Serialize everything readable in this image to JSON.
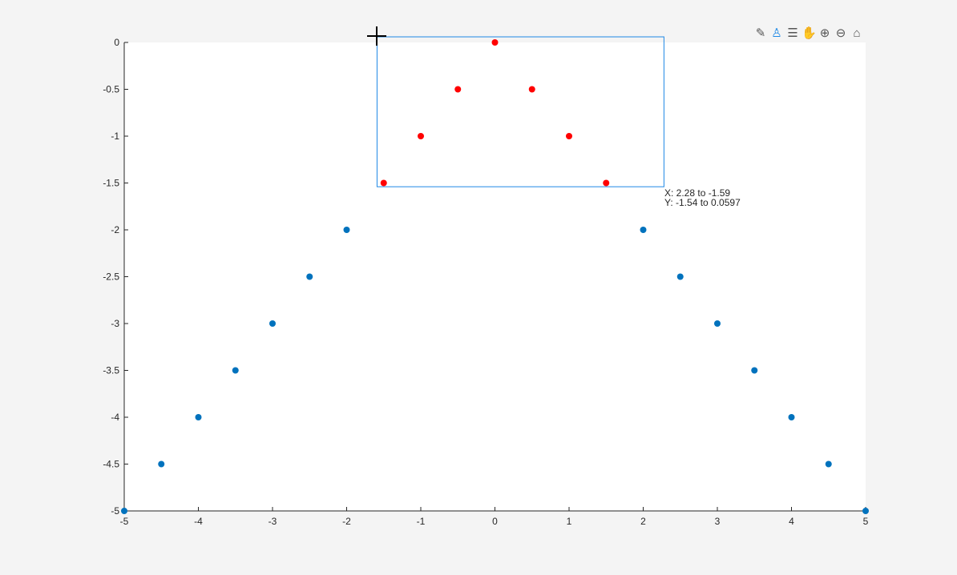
{
  "toolbar": {
    "items": [
      {
        "name": "data-tips-icon",
        "glyph": "✎"
      },
      {
        "name": "brush-icon",
        "glyph": "♙",
        "active": true
      },
      {
        "name": "legend-icon",
        "glyph": "☰"
      },
      {
        "name": "pan-hand-icon",
        "glyph": "✋"
      },
      {
        "name": "zoom-in-icon",
        "glyph": "⊕"
      },
      {
        "name": "zoom-out-icon",
        "glyph": "⊖"
      },
      {
        "name": "home-icon",
        "glyph": "⌂"
      }
    ]
  },
  "brush_readout": {
    "x_line": "X: 2.28 to -1.59",
    "y_line": "Y: -1.54 to 0.0597"
  },
  "chart_data": {
    "type": "scatter",
    "xlim": [
      -5,
      5
    ],
    "ylim": [
      -5,
      0
    ],
    "xticks": [
      "-5",
      "-4",
      "-3",
      "-2",
      "-1",
      "0",
      "1",
      "2",
      "3",
      "4",
      "5"
    ],
    "yticks": [
      "0",
      "-0.5",
      "-1",
      "-1.5",
      "-2",
      "-2.5",
      "-3",
      "-3.5",
      "-4",
      "-4.5",
      "-5"
    ],
    "x": [
      -5,
      -4.5,
      -4,
      -3.5,
      -3,
      -2.5,
      -2,
      -1.5,
      -1,
      -0.5,
      0,
      0.5,
      1,
      1.5,
      2,
      2.5,
      3,
      3.5,
      4,
      4.5,
      5
    ],
    "y": [
      -5,
      -4.5,
      -4,
      -3.5,
      -3,
      -2.5,
      -2,
      -1.5,
      -1,
      -0.5,
      0,
      -0.5,
      -1,
      -1.5,
      -2,
      -2.5,
      -3,
      -3.5,
      -4,
      -4.5,
      -5
    ],
    "brushed": [
      false,
      false,
      false,
      false,
      false,
      false,
      false,
      true,
      true,
      true,
      true,
      true,
      true,
      true,
      false,
      false,
      false,
      false,
      false,
      false,
      false
    ],
    "brush_region": {
      "x": [
        -1.59,
        2.28
      ],
      "y": [
        -1.54,
        0.0597
      ]
    },
    "colors": {
      "points": "#0072bd",
      "brushed": "#ff0000",
      "brush_box": "#1e88e5"
    },
    "grid": false
  }
}
